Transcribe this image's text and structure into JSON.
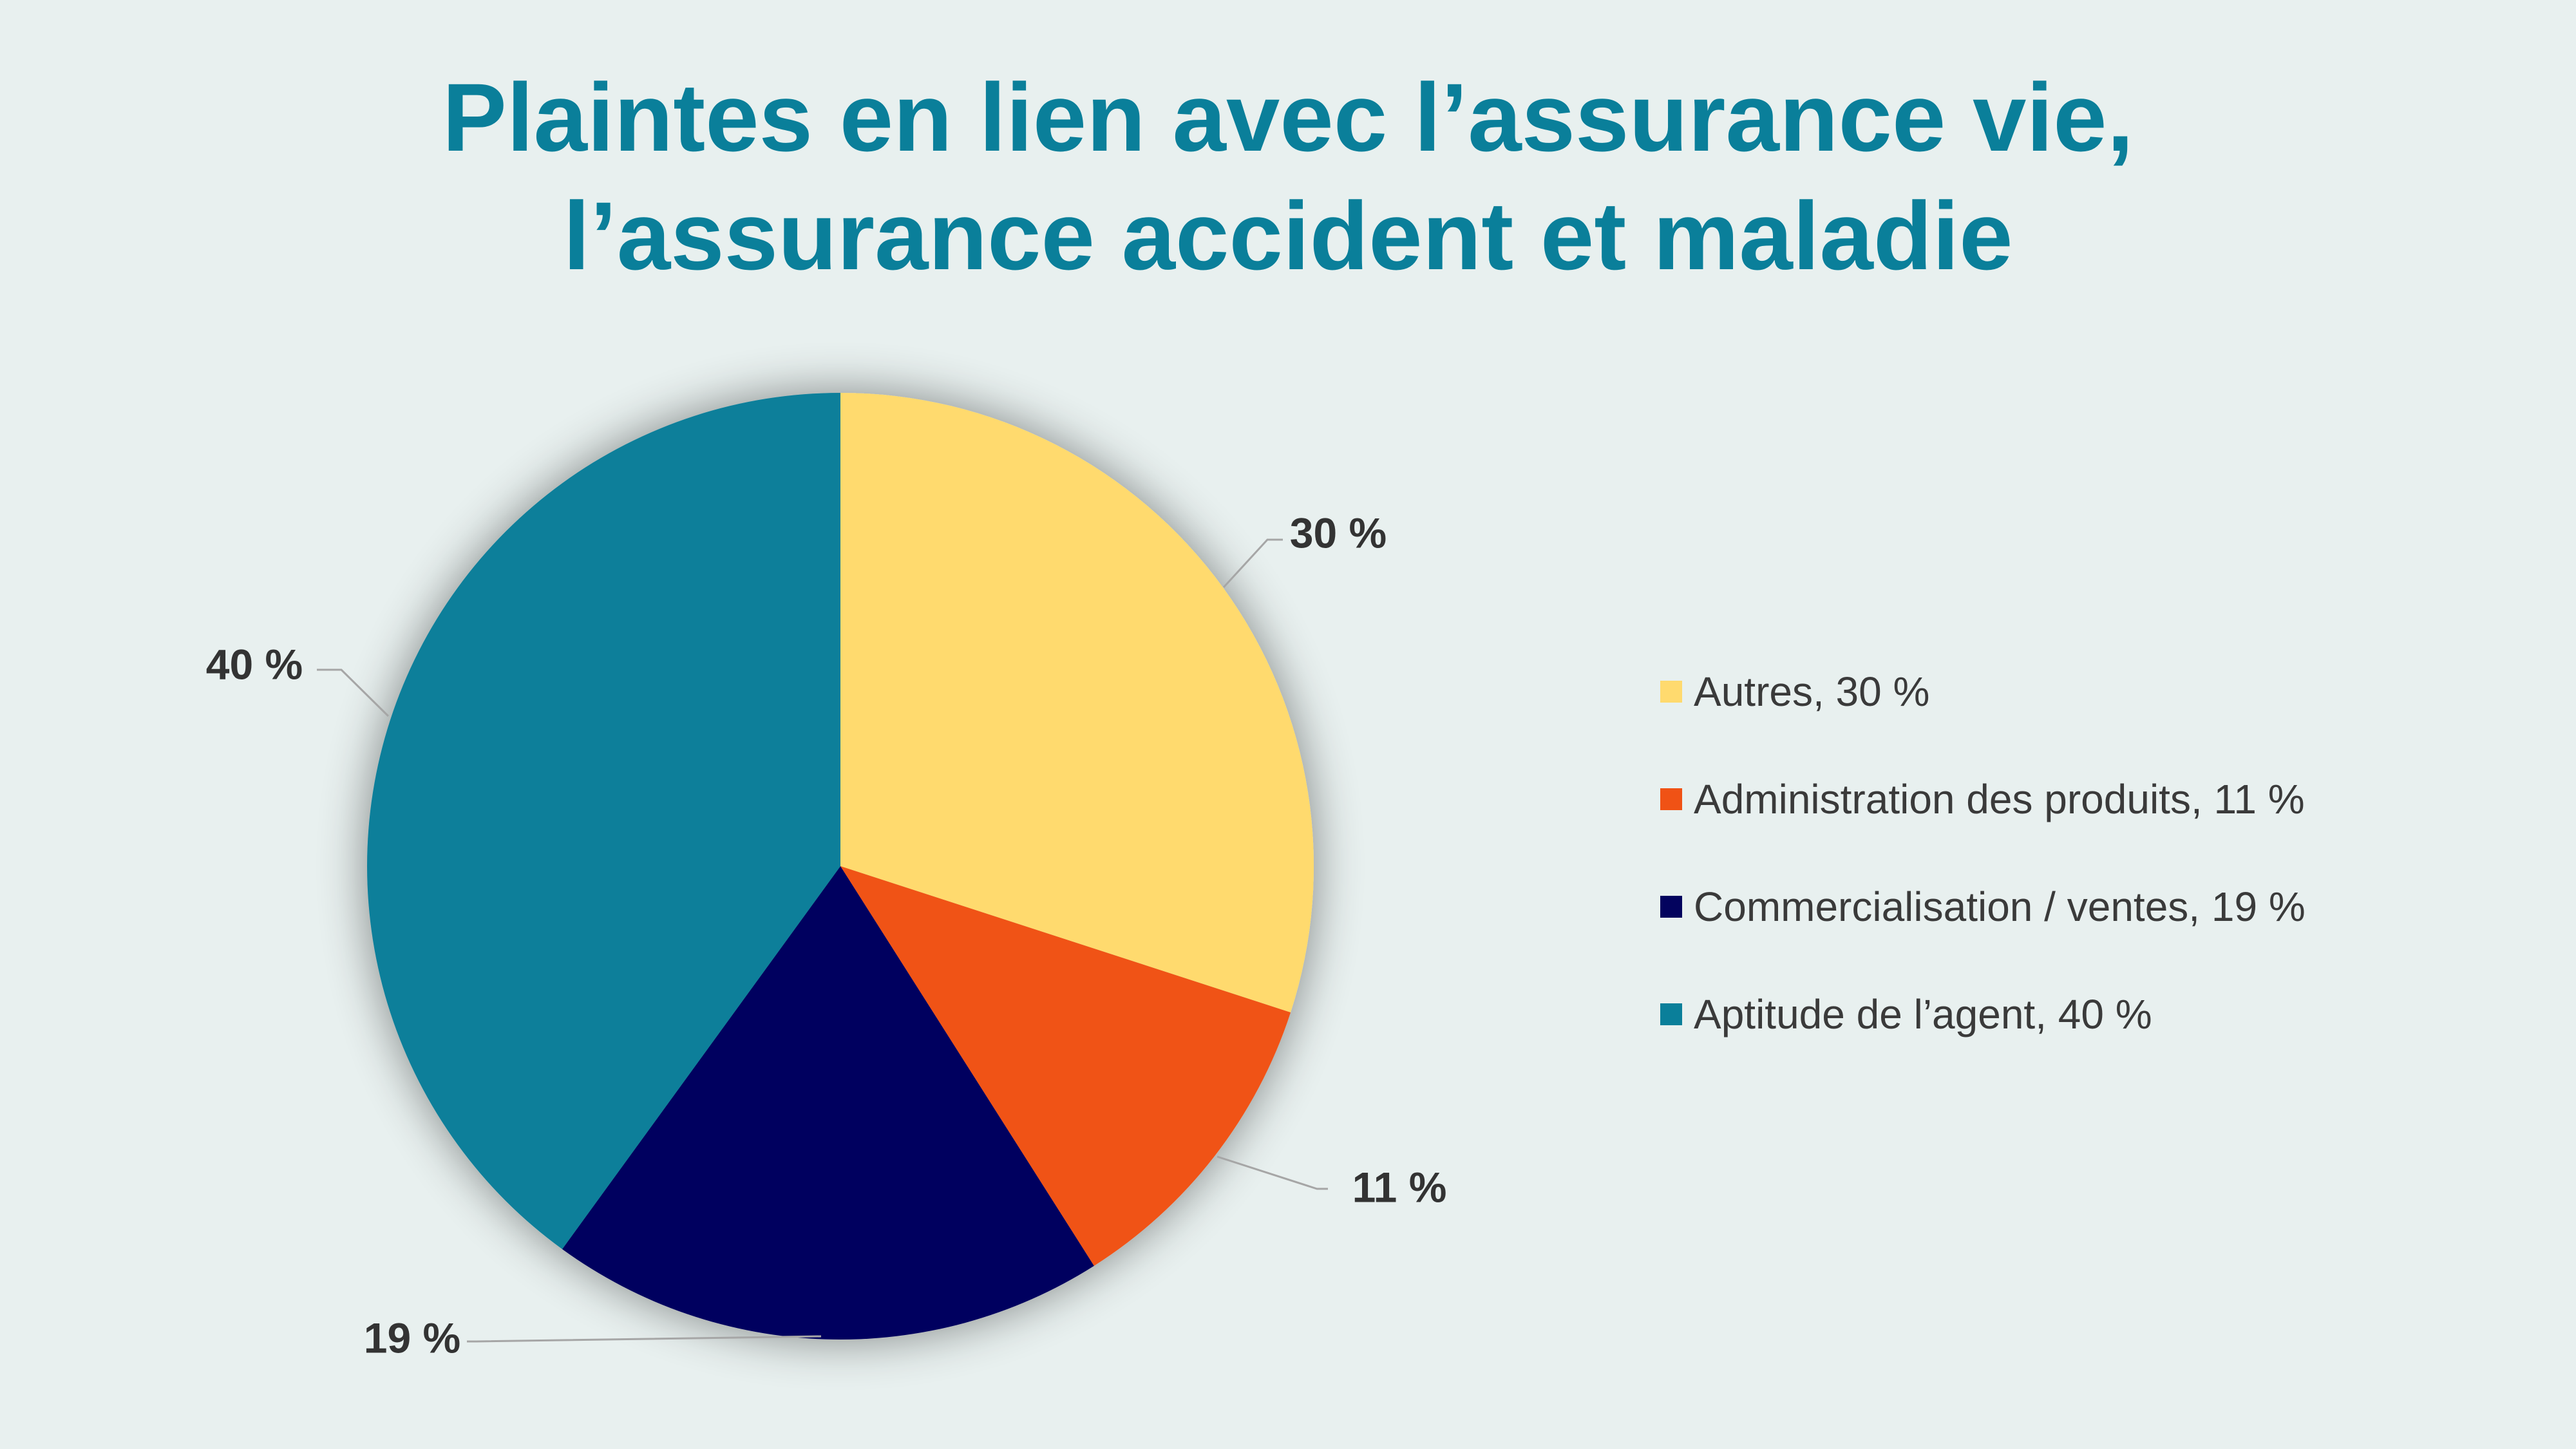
{
  "chart_data": {
    "type": "pie",
    "title": "Plaintes en lien avec l’assurance vie, l’assurance accident et maladie",
    "title_lines": [
      "Plaintes en lien avec l’assurance vie,",
      "l’assurance accident et maladie"
    ],
    "legend_position": "right",
    "slices": [
      {
        "name": "Autres",
        "value": 30,
        "data_label": "30 %",
        "legend_label": "Autres, 30 %",
        "color": "#ffda6e"
      },
      {
        "name": "Administration des produits",
        "value": 11,
        "data_label": "11 %",
        "legend_label": "Administration des produits, 11 %",
        "color": "#f05215"
      },
      {
        "name": "Commercialisation / ventes",
        "value": 19,
        "data_label": "19 %",
        "legend_label": "Commercialisation / ventes, 19 %",
        "color": "#03035e"
      },
      {
        "name": "Aptitude de l’agent",
        "value": 40,
        "data_label": "40 %",
        "legend_label": "Aptitude de l’agent, 40 %",
        "color": "#0a7f9a"
      }
    ]
  },
  "colors": {
    "background": "#e8f0ef",
    "title": "#0a7f9a",
    "data_label": "#333333",
    "leader_line": "#a6a6a6",
    "legend_text": "#3a3a3a"
  }
}
